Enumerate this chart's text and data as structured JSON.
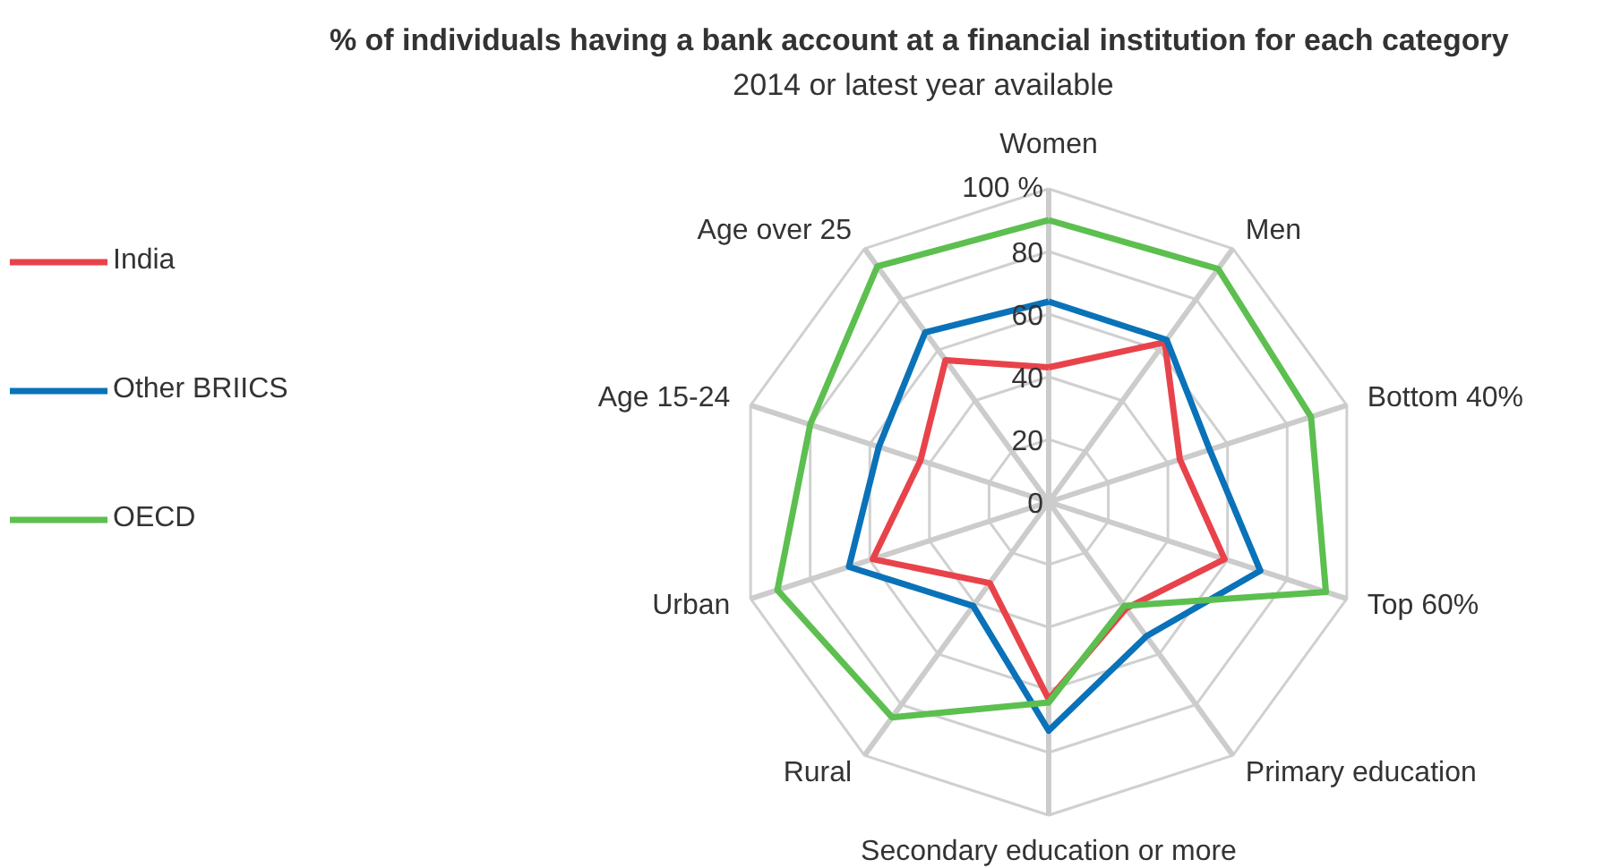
{
  "chart_data": {
    "type": "radar",
    "title": "% of  individuals having a bank account at a financial institution for each category",
    "subtitle": "2014 or latest year available",
    "categories": [
      "Women",
      "Men",
      "Bottom 40%",
      "Top 60%",
      "Primary education",
      "Secondary education or more",
      "Rural",
      "Urban",
      "Age 15-24",
      "Age over 25"
    ],
    "series": [
      {
        "name": "India",
        "color": "#e8434b",
        "values": [
          43,
          63,
          44,
          59,
          42,
          63,
          32,
          59,
          43,
          56
        ]
      },
      {
        "name": "Other BRIICS",
        "color": "#0a72b8",
        "values": [
          64,
          64,
          54,
          71,
          53,
          73,
          41,
          67,
          57,
          67
        ]
      },
      {
        "name": "OECD",
        "color": "#5cbf4f",
        "values": [
          90,
          92,
          88,
          93,
          41,
          64,
          85,
          91,
          80,
          93
        ]
      }
    ],
    "ylim": [
      0,
      100
    ],
    "yticks": [
      0,
      20,
      40,
      60,
      80,
      {
        "value": 100,
        "label": "100 %"
      }
    ],
    "grid": true,
    "legend": "top left"
  }
}
